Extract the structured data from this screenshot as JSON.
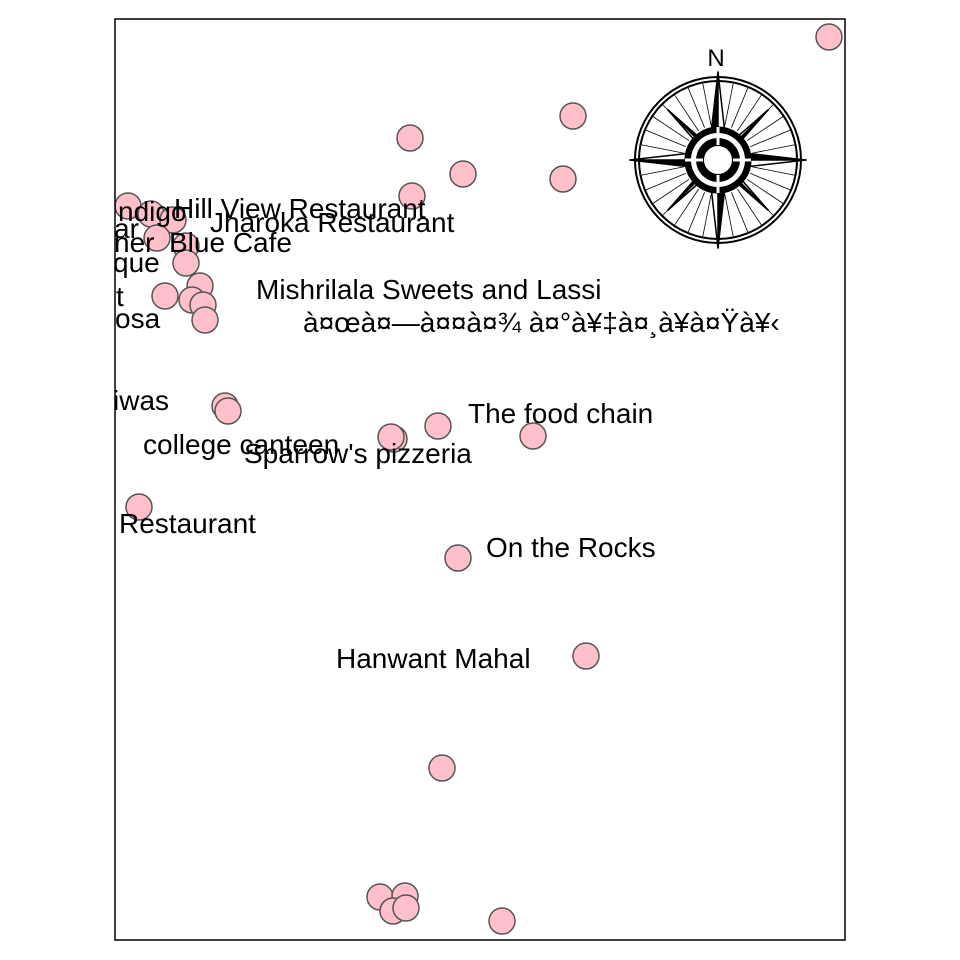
{
  "map": {
    "marker_fill": "#FFC0CB",
    "marker_stroke": "#555555",
    "frame_color": "#000000",
    "compass": {
      "north_label": "N"
    },
    "labels": [
      "ndigo",
      "Hill View Restaurant",
      "ar",
      "Jharoka Restaurant",
      "ner",
      "Blue Cafe",
      "que",
      "t",
      "Mishrilala Sweets and Lassi",
      "osa",
      "à¤œà¤—à¤¤à¤¾ à¤°à¥‡à¤¸à¥à¤Ÿà¥‹",
      "iwas",
      "The food chain",
      "college canteen",
      "Sparrow's pizzeria",
      "Restaurant",
      "On the Rocks",
      "Hanwant Mahal"
    ]
  }
}
